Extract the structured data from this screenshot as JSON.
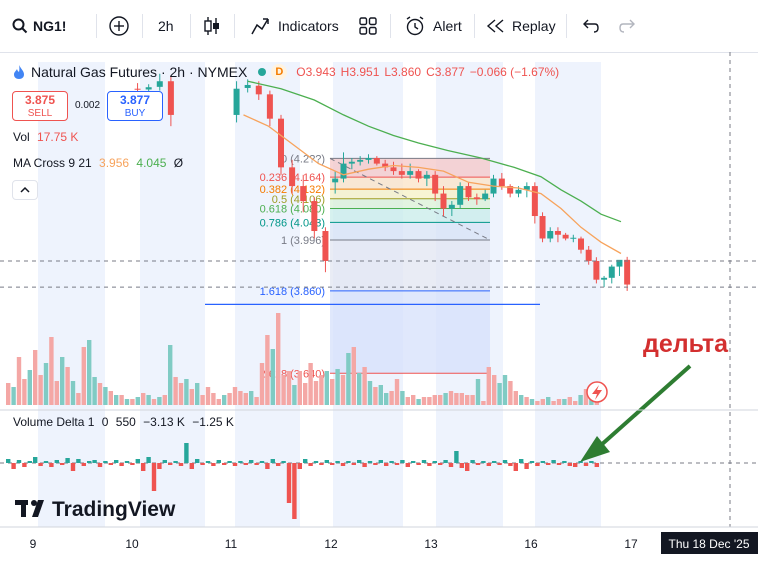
{
  "toolbar": {
    "symbol": "NG1!",
    "interval": "2h",
    "indicators_label": "Indicators",
    "alert_label": "Alert",
    "replay_label": "Replay"
  },
  "legend": {
    "title": "Natural Gas Futures · 2h · NYMEX",
    "source_badge": "D",
    "open": "O3.943",
    "high": "H3.951",
    "low": "L3.860",
    "close": "C3.877",
    "change": "−0.066 (−1.67%)",
    "sell_price": "3.875",
    "sell_label": "SELL",
    "spread": "0.002",
    "buy_price": "3.877",
    "buy_label": "BUY",
    "vol_label": "Vol",
    "vol_value": "17.75 K",
    "ma_label": "MA Cross 9 21",
    "ma_fast": "3.956",
    "ma_slow": "4.045",
    "ma_extra": "Ø",
    "collapse_icon": "chevron-up-icon"
  },
  "delta_legend": {
    "label": "Volume Delta 1",
    "v1": "0",
    "v2": "550",
    "v3": "−3.13 K",
    "v4": "−1.25 K"
  },
  "annotation": {
    "text": "дельта",
    "color": "#d32f2f",
    "arrow_color": "#2e7d32"
  },
  "branding": "TradingView",
  "time_axis": {
    "labels": [
      "9",
      "10",
      "11",
      "12",
      "13",
      "16",
      "17"
    ],
    "crosshair_label": "Thu 18 Dec '25"
  },
  "colors": {
    "up": "#26a69a",
    "down": "#ef5350",
    "ma_fast": "#f7a35c",
    "ma_slow": "#4caf50",
    "session_bg": "#eef3fd",
    "fib_line": "#2962ff"
  },
  "chart_data": {
    "type": "candlestick",
    "title": "Natural Gas Futures · 2h · NYMEX",
    "yrange": [
      3.55,
      4.45
    ],
    "candles": [
      [
        4.4,
        4.415,
        4.385,
        4.398,
        "10"
      ],
      [
        4.398,
        4.412,
        4.39,
        4.404,
        "10"
      ],
      [
        4.405,
        4.44,
        4.395,
        4.42,
        "10"
      ],
      [
        4.42,
        4.435,
        4.3,
        4.33,
        "10"
      ],
      [
        4.33,
        4.42,
        4.31,
        4.4,
        "11"
      ],
      [
        4.402,
        4.425,
        4.39,
        4.41,
        "11"
      ],
      [
        4.408,
        4.42,
        4.37,
        4.385,
        "11"
      ],
      [
        4.385,
        4.395,
        4.3,
        4.32,
        "11"
      ],
      [
        4.32,
        4.33,
        4.17,
        4.19,
        "11"
      ],
      [
        4.19,
        4.21,
        4.12,
        4.14,
        "11"
      ],
      [
        4.14,
        4.17,
        4.07,
        4.1,
        "11"
      ],
      [
        4.1,
        4.11,
        4.0,
        4.02,
        "11"
      ],
      [
        4.02,
        4.03,
        3.91,
        3.94,
        "11"
      ],
      [
        4.15,
        4.18,
        4.12,
        4.16,
        "12"
      ],
      [
        4.16,
        4.23,
        4.15,
        4.2,
        "12"
      ],
      [
        4.2,
        4.215,
        4.185,
        4.205,
        "12"
      ],
      [
        4.205,
        4.22,
        4.195,
        4.21,
        "12"
      ],
      [
        4.21,
        4.225,
        4.2,
        4.215,
        "12"
      ],
      [
        4.215,
        4.22,
        4.195,
        4.2,
        "12"
      ],
      [
        4.2,
        4.21,
        4.18,
        4.19,
        "12"
      ],
      [
        4.19,
        4.205,
        4.17,
        4.18,
        "12"
      ],
      [
        4.18,
        4.2,
        4.16,
        4.17,
        "12"
      ],
      [
        4.17,
        4.2,
        4.16,
        4.18,
        "12"
      ],
      [
        4.18,
        4.185,
        4.15,
        4.16,
        "12"
      ],
      [
        4.16,
        4.18,
        4.14,
        4.17,
        "12"
      ],
      [
        4.17,
        4.18,
        4.1,
        4.12,
        "13"
      ],
      [
        4.12,
        4.14,
        4.06,
        4.08,
        "13"
      ],
      [
        4.08,
        4.1,
        4.06,
        4.09,
        "13"
      ],
      [
        4.09,
        4.15,
        4.08,
        4.14,
        "13"
      ],
      [
        4.14,
        4.15,
        4.1,
        4.11,
        "13"
      ],
      [
        4.11,
        4.12,
        4.09,
        4.105,
        "13"
      ],
      [
        4.105,
        4.13,
        4.1,
        4.12,
        "13"
      ],
      [
        4.12,
        4.17,
        4.11,
        4.16,
        "13"
      ],
      [
        4.16,
        4.175,
        4.13,
        4.14,
        "13"
      ],
      [
        4.14,
        4.145,
        4.11,
        4.12,
        "13"
      ],
      [
        4.12,
        4.14,
        4.11,
        4.13,
        "13"
      ],
      [
        4.13,
        4.15,
        4.11,
        4.14,
        "13"
      ],
      [
        4.14,
        4.15,
        4.04,
        4.06,
        "16"
      ],
      [
        4.06,
        4.07,
        3.99,
        4.0,
        "16"
      ],
      [
        4.0,
        4.03,
        3.99,
        4.02,
        "16"
      ],
      [
        4.02,
        4.03,
        3.99,
        4.01,
        "16"
      ],
      [
        4.01,
        4.015,
        3.995,
        4.0,
        "16"
      ],
      [
        4.0,
        4.01,
        3.99,
        4.002,
        "16"
      ],
      [
        4.0,
        4.005,
        3.96,
        3.97,
        "16"
      ],
      [
        3.97,
        3.98,
        3.93,
        3.94,
        "16"
      ],
      [
        3.94,
        3.95,
        3.88,
        3.89,
        "16"
      ],
      [
        3.89,
        3.9,
        3.87,
        3.895,
        "16"
      ],
      [
        3.895,
        3.93,
        3.88,
        3.925,
        "16"
      ],
      [
        3.925,
        3.935,
        3.9,
        3.943,
        "16"
      ],
      [
        3.943,
        3.951,
        3.86,
        3.877,
        "16"
      ]
    ],
    "volumes": [
      [
        22,
        "down"
      ],
      [
        18,
        "up"
      ],
      [
        48,
        "down"
      ],
      [
        26,
        "down"
      ],
      [
        35,
        "up"
      ],
      [
        55,
        "down"
      ],
      [
        30,
        "down"
      ],
      [
        42,
        "up"
      ],
      [
        68,
        "down"
      ],
      [
        24,
        "down"
      ],
      [
        48,
        "up"
      ],
      [
        38,
        "down"
      ],
      [
        24,
        "up"
      ],
      [
        12,
        "down"
      ],
      [
        58,
        "down"
      ],
      [
        65,
        "up"
      ],
      [
        28,
        "up"
      ],
      [
        22,
        "down"
      ],
      [
        18,
        "up"
      ],
      [
        14,
        "down"
      ],
      [
        10,
        "up"
      ],
      [
        10,
        "down"
      ],
      [
        6,
        "up"
      ],
      [
        6,
        "down"
      ],
      [
        8,
        "up"
      ],
      [
        12,
        "down"
      ],
      [
        10,
        "up"
      ],
      [
        6,
        "down"
      ],
      [
        8,
        "up"
      ],
      [
        10,
        "down"
      ],
      [
        60,
        "up"
      ],
      [
        28,
        "down"
      ],
      [
        22,
        "down"
      ],
      [
        26,
        "up"
      ],
      [
        16,
        "down"
      ],
      [
        22,
        "up"
      ],
      [
        10,
        "down"
      ],
      [
        18,
        "down"
      ],
      [
        12,
        "down"
      ],
      [
        6,
        "down"
      ],
      [
        10,
        "up"
      ],
      [
        12,
        "down"
      ],
      [
        18,
        "down"
      ],
      [
        14,
        "down"
      ],
      [
        12,
        "down"
      ],
      [
        14,
        "up"
      ],
      [
        8,
        "down"
      ],
      [
        42,
        "down"
      ],
      [
        70,
        "down"
      ],
      [
        56,
        "up"
      ],
      [
        92,
        "down"
      ],
      [
        30,
        "down"
      ],
      [
        34,
        "down"
      ],
      [
        20,
        "up"
      ],
      [
        34,
        "down"
      ],
      [
        22,
        "down"
      ],
      [
        42,
        "down"
      ],
      [
        24,
        "down"
      ],
      [
        30,
        "down"
      ],
      [
        34,
        "up"
      ],
      [
        26,
        "down"
      ],
      [
        36,
        "up"
      ],
      [
        30,
        "down"
      ],
      [
        52,
        "up"
      ],
      [
        58,
        "down"
      ],
      [
        32,
        "up"
      ],
      [
        38,
        "down"
      ],
      [
        24,
        "up"
      ],
      [
        18,
        "down"
      ],
      [
        20,
        "up"
      ],
      [
        12,
        "up"
      ],
      [
        14,
        "down"
      ],
      [
        26,
        "down"
      ],
      [
        14,
        "up"
      ],
      [
        8,
        "down"
      ],
      [
        10,
        "down"
      ],
      [
        6,
        "up"
      ],
      [
        8,
        "down"
      ],
      [
        8,
        "down"
      ],
      [
        10,
        "down"
      ],
      [
        10,
        "down"
      ],
      [
        12,
        "up"
      ],
      [
        14,
        "down"
      ],
      [
        12,
        "down"
      ],
      [
        12,
        "down"
      ],
      [
        10,
        "down"
      ],
      [
        10,
        "down"
      ],
      [
        26,
        "up"
      ],
      [
        4,
        "down"
      ],
      [
        38,
        "down"
      ],
      [
        30,
        "down"
      ],
      [
        22,
        "up"
      ],
      [
        30,
        "up"
      ],
      [
        24,
        "down"
      ],
      [
        14,
        "down"
      ],
      [
        10,
        "up"
      ],
      [
        8,
        "down"
      ],
      [
        6,
        "up"
      ],
      [
        4,
        "down"
      ],
      [
        6,
        "down"
      ],
      [
        8,
        "up"
      ],
      [
        4,
        "down"
      ],
      [
        6,
        "down"
      ],
      [
        6,
        "up"
      ],
      [
        8,
        "down"
      ],
      [
        4,
        "down"
      ],
      [
        10,
        "up"
      ],
      [
        16,
        "down"
      ],
      [
        14,
        "up"
      ],
      [
        6,
        "down"
      ]
    ],
    "volume_delta": [
      [
        4,
        "up"
      ],
      [
        -6,
        "down"
      ],
      [
        3,
        "up"
      ],
      [
        -4,
        "down"
      ],
      [
        2,
        "up"
      ],
      [
        6,
        "up"
      ],
      [
        -3,
        "down"
      ],
      [
        2,
        "up"
      ],
      [
        -4,
        "down"
      ],
      [
        3,
        "up"
      ],
      [
        -2,
        "down"
      ],
      [
        5,
        "up"
      ],
      [
        -8,
        "down"
      ],
      [
        4,
        "up"
      ],
      [
        -3,
        "down"
      ],
      [
        2,
        "up"
      ],
      [
        3,
        "up"
      ],
      [
        -4,
        "down"
      ],
      [
        2,
        "up"
      ],
      [
        -2,
        "down"
      ],
      [
        3,
        "up"
      ],
      [
        -3,
        "down"
      ],
      [
        2,
        "up"
      ],
      [
        -2,
        "down"
      ],
      [
        4,
        "up"
      ],
      [
        -8,
        "down"
      ],
      [
        6,
        "up"
      ],
      [
        -28,
        "down"
      ],
      [
        -6,
        "down"
      ],
      [
        3,
        "up"
      ],
      [
        -2,
        "down"
      ],
      [
        2,
        "up"
      ],
      [
        -3,
        "down"
      ],
      [
        20,
        "up"
      ],
      [
        -6,
        "down"
      ],
      [
        4,
        "up"
      ],
      [
        -2,
        "down"
      ],
      [
        2,
        "up"
      ],
      [
        -3,
        "down"
      ],
      [
        3,
        "up"
      ],
      [
        -2,
        "down"
      ],
      [
        2,
        "up"
      ],
      [
        -3,
        "down"
      ],
      [
        2,
        "up"
      ],
      [
        -2,
        "down"
      ],
      [
        3,
        "up"
      ],
      [
        -2,
        "down"
      ],
      [
        2,
        "up"
      ],
      [
        -6,
        "down"
      ],
      [
        4,
        "up"
      ],
      [
        -3,
        "down"
      ],
      [
        2,
        "up"
      ],
      [
        -40,
        "down"
      ],
      [
        -56,
        "down"
      ],
      [
        -6,
        "down"
      ],
      [
        4,
        "up"
      ],
      [
        -3,
        "down"
      ],
      [
        2,
        "up"
      ],
      [
        -2,
        "down"
      ],
      [
        3,
        "up"
      ],
      [
        -2,
        "down"
      ],
      [
        2,
        "up"
      ],
      [
        -3,
        "down"
      ],
      [
        2,
        "up"
      ],
      [
        -2,
        "down"
      ],
      [
        3,
        "up"
      ],
      [
        -4,
        "down"
      ],
      [
        2,
        "up"
      ],
      [
        -2,
        "down"
      ],
      [
        3,
        "up"
      ],
      [
        -3,
        "down"
      ],
      [
        2,
        "up"
      ],
      [
        -2,
        "down"
      ],
      [
        3,
        "up"
      ],
      [
        -4,
        "down"
      ],
      [
        2,
        "up"
      ],
      [
        -2,
        "down"
      ],
      [
        3,
        "up"
      ],
      [
        -3,
        "down"
      ],
      [
        2,
        "up"
      ],
      [
        -2,
        "down"
      ],
      [
        3,
        "up"
      ],
      [
        -4,
        "down"
      ],
      [
        12,
        "up"
      ],
      [
        -5,
        "down"
      ],
      [
        -8,
        "down"
      ],
      [
        3,
        "up"
      ],
      [
        -2,
        "down"
      ],
      [
        2,
        "up"
      ],
      [
        -3,
        "down"
      ],
      [
        2,
        "up"
      ],
      [
        -2,
        "down"
      ],
      [
        3,
        "up"
      ],
      [
        -3,
        "down"
      ],
      [
        -8,
        "down"
      ],
      [
        4,
        "up"
      ],
      [
        -6,
        "down"
      ],
      [
        2,
        "up"
      ],
      [
        -3,
        "down"
      ],
      [
        2,
        "up"
      ],
      [
        -2,
        "down"
      ],
      [
        3,
        "up"
      ],
      [
        -2,
        "down"
      ],
      [
        2,
        "up"
      ],
      [
        -3,
        "down"
      ],
      [
        -4,
        "down"
      ],
      [
        2,
        "up"
      ],
      [
        -3,
        "down"
      ],
      [
        2,
        "up"
      ],
      [
        -4,
        "down"
      ]
    ],
    "ma_fast": [
      [
        4.33,
        "11"
      ],
      [
        4.3,
        "11"
      ],
      [
        4.25,
        "11"
      ],
      [
        4.2,
        "11"
      ],
      [
        4.17,
        "12"
      ],
      [
        4.185,
        "12"
      ],
      [
        4.195,
        "12"
      ],
      [
        4.19,
        "12"
      ],
      [
        4.18,
        "13"
      ],
      [
        4.15,
        "13"
      ],
      [
        4.14,
        "13"
      ],
      [
        4.135,
        "13"
      ],
      [
        4.12,
        "16"
      ],
      [
        4.08,
        "16"
      ],
      [
        4.03,
        "16"
      ],
      [
        3.99,
        "16"
      ],
      [
        3.96,
        "16"
      ]
    ],
    "ma_slow": [
      [
        4.42,
        "11"
      ],
      [
        4.4,
        "11"
      ],
      [
        4.37,
        "11"
      ],
      [
        4.33,
        "12"
      ],
      [
        4.3,
        "12"
      ],
      [
        4.275,
        "12"
      ],
      [
        4.255,
        "12"
      ],
      [
        4.235,
        "13"
      ],
      [
        4.215,
        "13"
      ],
      [
        4.19,
        "13"
      ],
      [
        4.165,
        "16"
      ],
      [
        4.13,
        "16"
      ],
      [
        4.1,
        "16"
      ],
      [
        4.065,
        "16"
      ],
      [
        4.045,
        "16"
      ]
    ],
    "fib_levels": [
      {
        "label": "0 (4.2??)",
        "ratio": 0,
        "price": 4.214
      },
      {
        "label": "0.236 (4.164)",
        "ratio": 0.236,
        "price": 4.164
      },
      {
        "label": "0.382 (4.132)",
        "ratio": 0.382,
        "price": 4.132
      },
      {
        "label": "0.5 (4.106)",
        "ratio": 0.5,
        "price": 4.106
      },
      {
        "label": "0.618 (4.080)",
        "ratio": 0.618,
        "price": 4.08
      },
      {
        "label": "0.786 (4.043)",
        "ratio": 0.786,
        "price": 4.043
      },
      {
        "label": "1 (3.996)",
        "ratio": 1,
        "price": 3.996
      },
      {
        "label": "1.618 (3.860)",
        "ratio": 1.618,
        "price": 3.86
      },
      {
        "label": "2.618 (3.640)",
        "ratio": 2.618,
        "price": 3.64
      }
    ],
    "horizontal_line_price": 3.824,
    "crosshair_price": 3.94
  }
}
